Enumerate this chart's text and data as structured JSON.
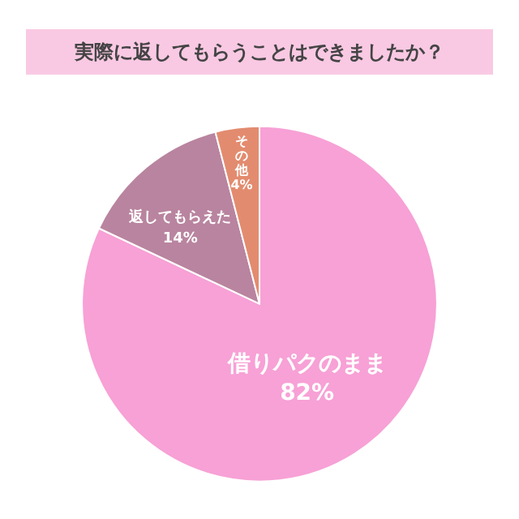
{
  "chart_data": {
    "type": "pie",
    "title": "実際に返してもらうことはできましたか？",
    "categories": [
      "借りパクのまま",
      "返してもらえた",
      "その他"
    ],
    "values": [
      82,
      14,
      4
    ],
    "value_labels": [
      "82%",
      "14%",
      "4%"
    ],
    "colors": [
      "#f7a1d6",
      "#b9849f",
      "#e38b6f"
    ],
    "legend": false
  }
}
